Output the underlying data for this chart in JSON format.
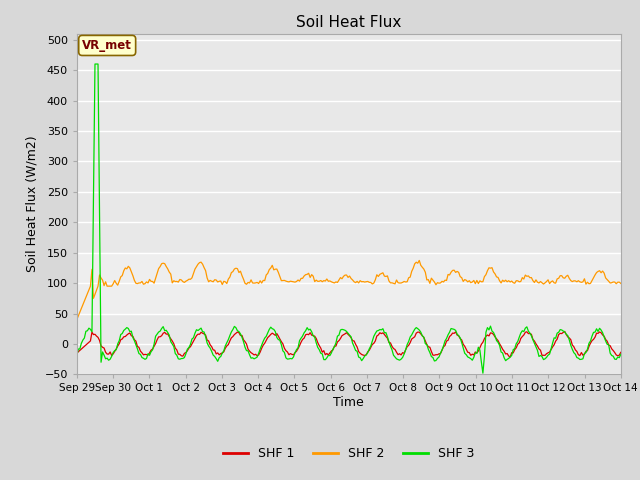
{
  "title": "Soil Heat Flux",
  "ylabel": "Soil Heat Flux (W/m2)",
  "xlabel": "Time",
  "ylim": [
    -50,
    510
  ],
  "yticks": [
    -50,
    0,
    50,
    100,
    150,
    200,
    250,
    300,
    350,
    400,
    450,
    500
  ],
  "bg_color": "#d8d8d8",
  "plot_bg_color": "#e8e8e8",
  "shf1_color": "#dd0000",
  "shf2_color": "#ff9900",
  "shf3_color": "#00dd00",
  "legend_label1": "SHF 1",
  "legend_label2": "SHF 2",
  "legend_label3": "SHF 3",
  "vr_met_label": "VR_met",
  "vr_met_bg": "#ffffcc",
  "vr_met_border": "#886600",
  "band_low": 50,
  "band_high": 150
}
